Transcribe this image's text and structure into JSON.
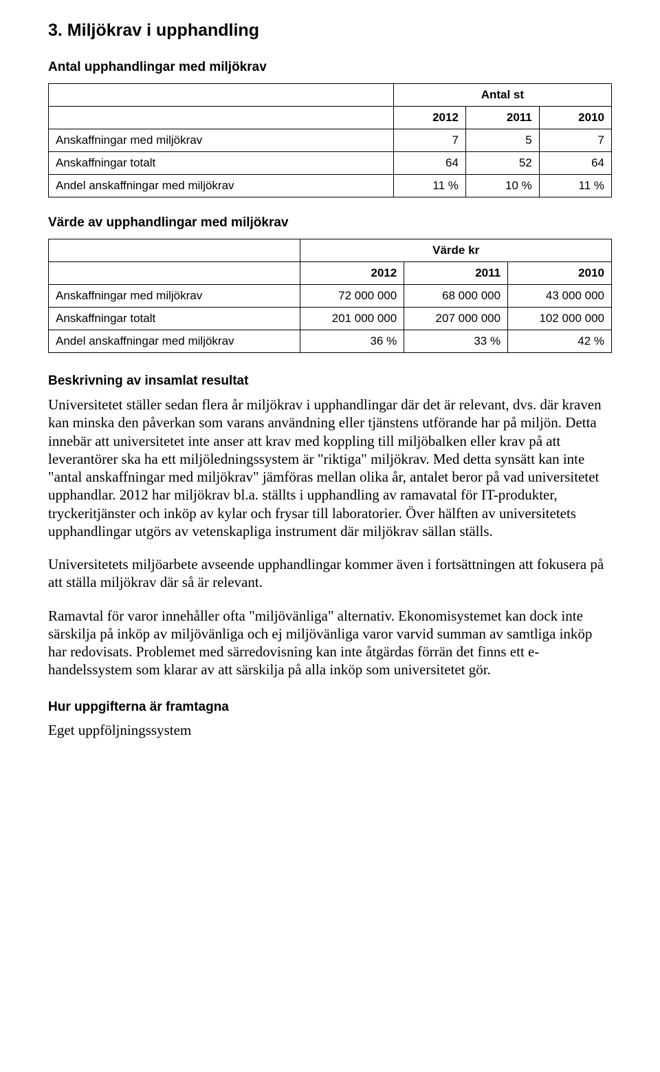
{
  "section": {
    "heading": "3. Miljökrav i upphandling"
  },
  "table1": {
    "title": "Antal upphandlingar med miljökrav",
    "group_header": "Antal st",
    "years": [
      "2012",
      "2011",
      "2010"
    ],
    "rows": [
      {
        "label": "Anskaffningar med miljökrav",
        "vals": [
          "7",
          "5",
          "7"
        ]
      },
      {
        "label": "Anskaffningar totalt",
        "vals": [
          "64",
          "52",
          "64"
        ]
      },
      {
        "label": "Andel anskaffningar med miljökrav",
        "vals": [
          "11 %",
          "10 %",
          "11 %"
        ]
      }
    ]
  },
  "table2": {
    "title": "Värde av upphandlingar med miljökrav",
    "group_header": "Värde kr",
    "years": [
      "2012",
      "2011",
      "2010"
    ],
    "rows": [
      {
        "label": "Anskaffningar med miljökrav",
        "vals": [
          "72 000 000",
          "68 000 000",
          "43 000 000"
        ]
      },
      {
        "label": "Anskaffningar totalt",
        "vals": [
          "201 000 000",
          "207 000 000",
          "102 000 000"
        ]
      },
      {
        "label": "Andel anskaffningar med miljökrav",
        "vals": [
          "36 %",
          "33 %",
          "42 %"
        ]
      }
    ]
  },
  "narrative": {
    "heading": "Beskrivning av insamlat resultat",
    "p1": "Universitetet ställer sedan flera år miljökrav i upphandlingar där det är relevant, dvs. där kraven kan minska den påverkan som varans användning eller tjänstens utförande har på miljön. Detta innebär att universitetet inte anser att krav med koppling till miljöbalken eller krav på att leverantörer ska ha ett miljöledningssystem är \"riktiga\" miljökrav. Med detta synsätt kan inte \"antal anskaffningar med miljökrav\" jämföras mellan olika år, antalet beror på vad universitetet upphandlar. 2012 har miljökrav bl.a. ställts i upphandling av ramavatal för IT-produkter, tryckeritjänster och inköp av kylar och frysar till laboratorier. Över hälften av universitetets upphandlingar utgörs av vetenskapliga instrument där miljökrav sällan ställs.",
    "p2": "Universitetets miljöarbete avseende upphandlingar kommer även i fortsättningen att fokusera på att ställa miljökrav där så är relevant.",
    "p3": "Ramavtal för varor innehåller ofta \"miljövänliga\" alternativ. Ekonomisystemet kan dock inte särskilja på inköp av miljövänliga och ej miljövänliga varor varvid summan av samtliga inköp har redovisats. Problemet med särredovisning kan inte åtgärdas förrän det finns ett e-handelssystem som klarar av att särskilja på alla inköp som universitetet gör."
  },
  "footer": {
    "heading": "Hur uppgifterna är framtagna",
    "line": "Eget uppföljningssystem"
  }
}
